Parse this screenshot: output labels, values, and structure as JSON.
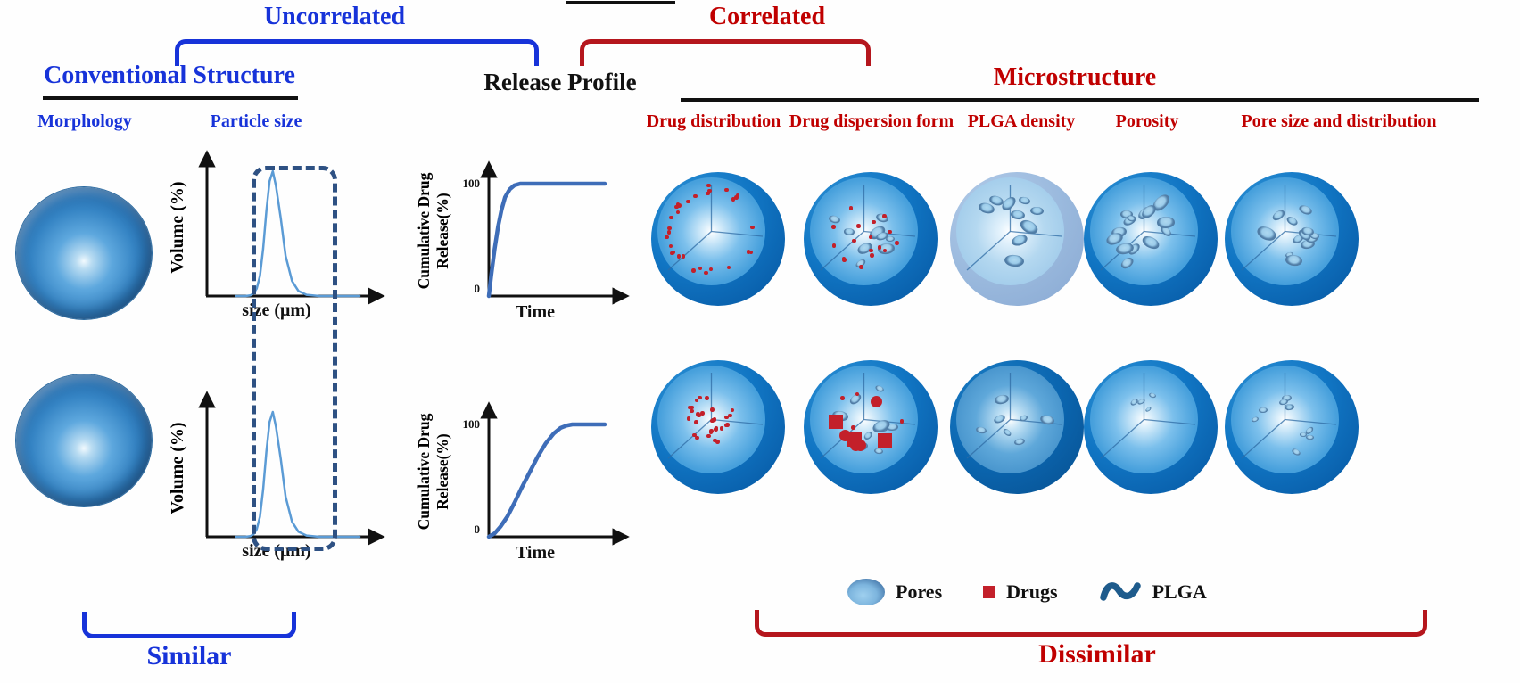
{
  "header": {
    "uncorrelated": "Uncorrelated",
    "correlated": "Correlated",
    "conventional_structure": "Conventional Structure",
    "release_profile": "Release Profile",
    "microstructure": "Microstructure"
  },
  "conventional_columns": [
    "Morphology",
    "Particle size"
  ],
  "micro_columns": [
    "Drug distribution",
    "Drug dispersion form",
    "PLGA density",
    "Porosity",
    "Pore size and distribution"
  ],
  "chart_data": [
    {
      "id": "particle-size-top",
      "type": "line",
      "row": "top",
      "xlabel": "size (μm)",
      "ylabel": "Volume (%)",
      "ylim": [
        0,
        100
      ],
      "x": [
        0.18,
        0.24,
        0.27,
        0.29,
        0.31,
        0.33,
        0.35,
        0.37,
        0.39,
        0.41,
        0.43,
        0.46,
        0.49,
        0.53,
        0.57,
        0.62,
        0.7,
        0.95
      ],
      "y": [
        0,
        0,
        0.5,
        2,
        6,
        16,
        38,
        68,
        92,
        100,
        88,
        62,
        32,
        12,
        4,
        1,
        0,
        0
      ]
    },
    {
      "id": "particle-size-bottom",
      "type": "line",
      "row": "bottom",
      "xlabel": "size (μm)",
      "ylabel": "Volume (%)",
      "ylim": [
        0,
        100
      ],
      "x": [
        0.18,
        0.24,
        0.27,
        0.29,
        0.31,
        0.33,
        0.35,
        0.37,
        0.39,
        0.41,
        0.43,
        0.46,
        0.49,
        0.53,
        0.57,
        0.62,
        0.7,
        0.95
      ],
      "y": [
        0,
        0,
        0.5,
        2,
        6,
        16,
        38,
        68,
        92,
        100,
        88,
        62,
        32,
        12,
        4,
        1,
        0,
        0
      ]
    },
    {
      "id": "release-top",
      "type": "line",
      "row": "top",
      "xlabel": "Time",
      "ylabel": "Cumulative Drug Release(%)",
      "ylim": [
        0,
        100
      ],
      "ytick_top": "100",
      "ytick_bottom": "0",
      "x": [
        0,
        0.02,
        0.05,
        0.08,
        0.11,
        0.14,
        0.18,
        0.22,
        0.27,
        0.33,
        1.0
      ],
      "y": [
        0,
        18,
        42,
        62,
        77,
        88,
        95,
        98.5,
        100,
        100,
        100
      ]
    },
    {
      "id": "release-bottom",
      "type": "line",
      "row": "bottom",
      "xlabel": "Time",
      "ylabel": "Cumulative Drug Release(%)",
      "ylim": [
        0,
        100
      ],
      "ytick_top": "100",
      "ytick_bottom": "0",
      "x": [
        0,
        0.05,
        0.1,
        0.16,
        0.22,
        0.28,
        0.35,
        0.42,
        0.49,
        0.56,
        0.62,
        0.67,
        0.72,
        1.0
      ],
      "y": [
        0,
        3,
        9,
        18,
        30,
        43,
        57,
        71,
        83,
        92,
        97,
        99,
        100,
        100
      ]
    }
  ],
  "microspheres": {
    "rows": [
      {
        "name": "top",
        "cells": [
          {
            "column": "Drug distribution",
            "tint": "normal",
            "pores": {
              "count": 0
            },
            "drugs": {
              "small": 30,
              "placement": "surface-ring"
            },
            "seed": 11
          },
          {
            "column": "Drug dispersion form",
            "tint": "normal",
            "pores": {
              "count": 9,
              "min": 10,
              "max": 22
            },
            "drugs": {
              "small": 17,
              "placement": "scatter"
            },
            "seed": 22
          },
          {
            "column": "PLGA density",
            "tint": "light",
            "pores": {
              "count": 9,
              "min": 10,
              "max": 24
            },
            "seed": 33
          },
          {
            "column": "Porosity",
            "tint": "normal",
            "pores": {
              "count": 14,
              "min": 9,
              "max": 22
            },
            "seed": 44
          },
          {
            "column": "Pore size and distribution",
            "tint": "normal",
            "pores": {
              "count": 12,
              "min": 8,
              "max": 24
            },
            "seed": 55
          }
        ]
      },
      {
        "name": "bottom",
        "cells": [
          {
            "column": "Drug distribution",
            "tint": "normal",
            "pores": {
              "count": 0
            },
            "drugs": {
              "small": 30,
              "placement": "center-cluster"
            },
            "seed": 66
          },
          {
            "column": "Drug dispersion form",
            "tint": "normal",
            "pores": {
              "count": 9,
              "min": 9,
              "max": 20
            },
            "drugs": {
              "small": 5,
              "placement": "scatter",
              "squares": 3,
              "circles": 4
            },
            "seed": 77
          },
          {
            "column": "PLGA density",
            "tint": "dark",
            "pores": {
              "count": 7,
              "min": 8,
              "max": 18
            },
            "seed": 88
          },
          {
            "column": "Porosity",
            "tint": "normal",
            "pores": {
              "count": 4,
              "min": 7,
              "max": 12
            },
            "seed": 99
          },
          {
            "column": "Pore size and distribution",
            "tint": "normal",
            "pores": {
              "count": 10,
              "min": 7,
              "max": 11
            },
            "seed": 111
          }
        ]
      }
    ]
  },
  "legend": {
    "items": [
      {
        "icon": "pore-icon",
        "label": "Pores"
      },
      {
        "icon": "drug-icon",
        "label": "Drugs"
      },
      {
        "icon": "plga-icon",
        "label": "PLGA"
      }
    ]
  },
  "footer": {
    "similar": "Similar",
    "dissimilar": "Dissimilar"
  },
  "colors": {
    "blue": "#1733d9",
    "red": "#c00000",
    "bracket_red": "#b5161d",
    "curve_particle": "#5b9bd5",
    "curve_release": "#3e6db8",
    "dashed_box": "#2e5183",
    "sphere_shell": "#0f6fbc",
    "sphere_face": "#459ed9",
    "pore_rim": "#4d7ca9",
    "pore_center": "#a6d4ef",
    "drug": "#c3202a",
    "plga_icon": "#1e5b8c",
    "axis": "#111111"
  }
}
